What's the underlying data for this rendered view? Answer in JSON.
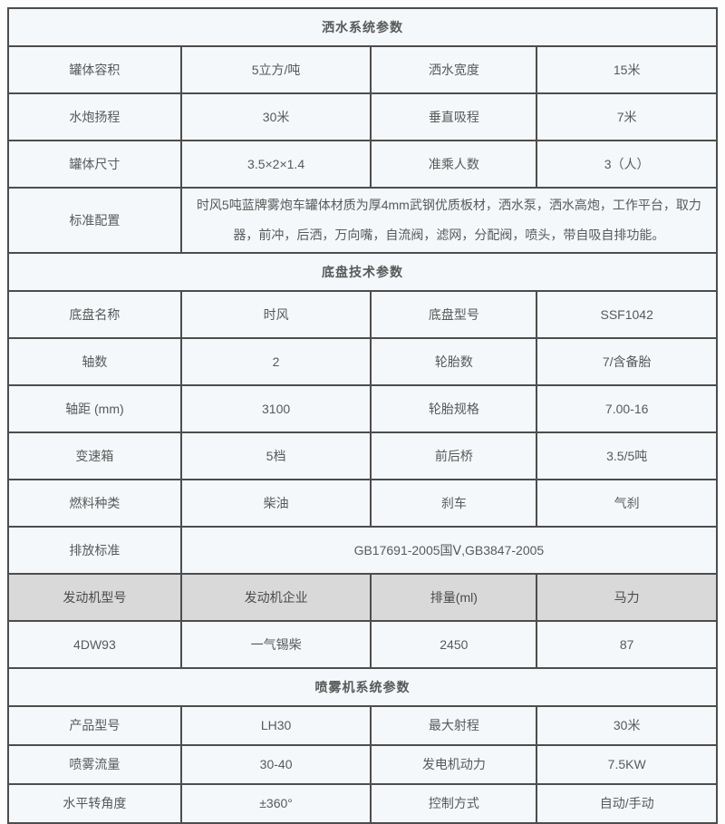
{
  "table": {
    "sections": [
      {
        "title": "洒水系统参数",
        "rows": [
          {
            "kind": "four",
            "c": [
              "罐体容积",
              "5立方/吨",
              "洒水宽度",
              "15米"
            ]
          },
          {
            "kind": "four",
            "c": [
              "水炮扬程",
              "30米",
              "垂直吸程",
              "7米"
            ]
          },
          {
            "kind": "four",
            "c": [
              "罐体尺寸",
              "3.5×2×1.4",
              "准乘人数",
              "3（人）"
            ]
          },
          {
            "kind": "span",
            "label": "标准配置",
            "value": "时风5吨蓝牌雾炮车罐体材质为厚4mm武钢优质板材，洒水泵，洒水高炮，工作平台，取力器，前冲，后洒，万向嘴，自流阀，滤网，分配阀，喷头，带自吸自排功能。",
            "align": "left"
          }
        ]
      },
      {
        "title": "底盘技术参数",
        "rows": [
          {
            "kind": "four",
            "c": [
              "底盘名称",
              "时风",
              "底盘型号",
              "SSF1042"
            ]
          },
          {
            "kind": "four",
            "c": [
              "轴数",
              "2",
              "轮胎数",
              "7/含备胎"
            ]
          },
          {
            "kind": "four",
            "c": [
              "轴距 (mm)",
              "3100",
              "轮胎规格",
              "7.00-16"
            ]
          },
          {
            "kind": "four",
            "c": [
              "变速箱",
              "5档",
              "前后桥",
              "3.5/5吨"
            ]
          },
          {
            "kind": "four",
            "c": [
              "燃料种类",
              "柴油",
              "刹车",
              "气刹"
            ]
          },
          {
            "kind": "span",
            "label": "排放标准",
            "value": "GB17691-2005国Ⅴ,GB3847-2005",
            "align": "center"
          },
          {
            "kind": "four",
            "header": true,
            "c": [
              "发动机型号",
              "发动机企业",
              "排量(ml)",
              "马力"
            ]
          },
          {
            "kind": "four",
            "c": [
              "4DW93",
              "一气锡柴",
              "2450",
              "87"
            ]
          }
        ]
      },
      {
        "title": "喷雾机系统参数",
        "rows": [
          {
            "kind": "four",
            "c": [
              "产品型号",
              "LH30",
              "最大射程",
              "30米"
            ]
          },
          {
            "kind": "four",
            "c": [
              "喷雾流量",
              "30-40",
              "发电机动力",
              "7.5KW"
            ]
          },
          {
            "kind": "four",
            "c": [
              "水平转角度",
              "±360°",
              "控制方式",
              "自动/手动"
            ]
          }
        ]
      }
    ]
  },
  "colors": {
    "header_bg": "#d9d9d9",
    "cell_bg": "#f4f8fa",
    "border": "#4d4d4d",
    "text": "#595959"
  }
}
